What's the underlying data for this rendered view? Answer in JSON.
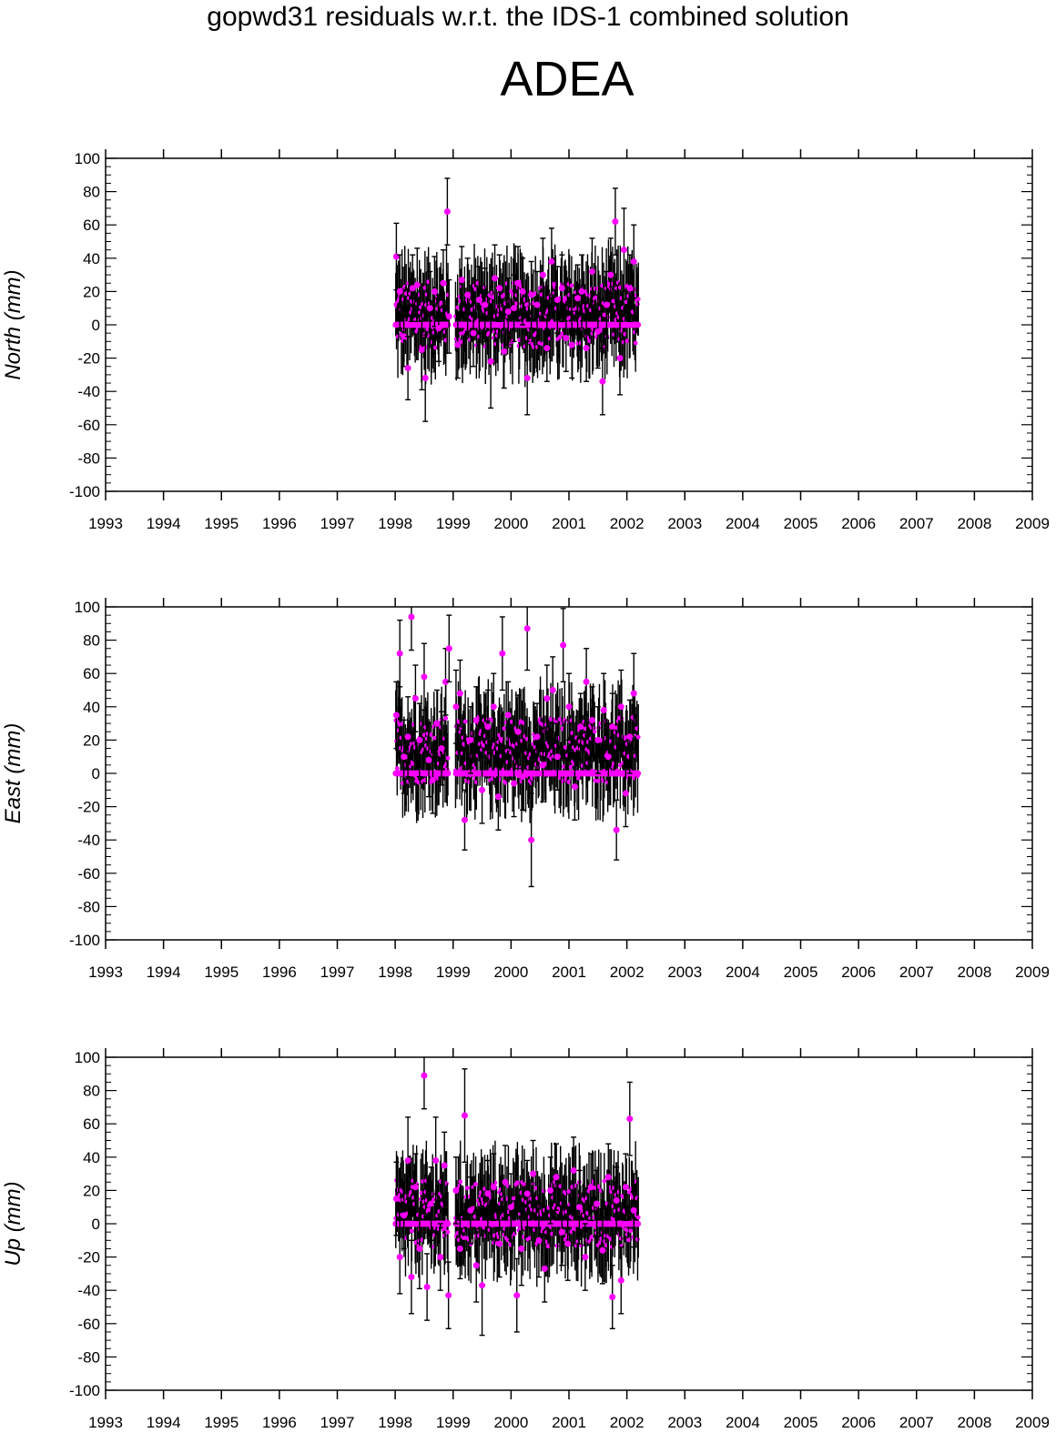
{
  "header": {
    "suptitle": "gopwd31 residuals w.r.t. the IDS-1 combined solution",
    "station": "ADEA"
  },
  "colors": {
    "marker": "#ff00ff",
    "error_bar": "#000000",
    "axes": "#000000"
  },
  "chart_data": [
    {
      "type": "scatter",
      "panel": "north",
      "ylabel": "North (mm)",
      "xlim": [
        1993,
        2009
      ],
      "ylim": [
        -100,
        100
      ],
      "x_ticks": [
        "1993",
        "1994",
        "1995",
        "1996",
        "1997",
        "1998",
        "1999",
        "2000",
        "2001",
        "2002",
        "2003",
        "2004",
        "2005",
        "2006",
        "2007",
        "2008",
        "2009"
      ],
      "y_ticks": [
        "100",
        "80",
        "60",
        "40",
        "20",
        "0",
        "-20",
        "-40",
        "-60",
        "-80",
        "-100"
      ],
      "error_bars": true,
      "data_coverage": [
        1998.0,
        2002.2
      ],
      "series": [
        {
          "x": [
            1998.02,
            1998.08,
            1998.15,
            1998.22,
            1998.3,
            1998.38,
            1998.46,
            1998.52,
            1998.6,
            1998.68,
            1998.75,
            1998.83,
            1998.9,
            1998.93,
            1999.08,
            1999.15,
            1999.25,
            1999.35,
            1999.45,
            1999.55,
            1999.65,
            1999.72,
            1999.8,
            1999.88,
            1999.95,
            2000.05,
            2000.12,
            2000.2,
            2000.28,
            2000.35,
            2000.45,
            2000.55,
            2000.62,
            2000.7,
            2000.8,
            2000.88,
            2000.95,
            2001.05,
            2001.15,
            2001.22,
            2001.3,
            2001.4,
            2001.5,
            2001.58,
            2001.65,
            2001.72,
            2001.8,
            2001.88,
            2001.95,
            2002.05,
            2002.12
          ],
          "y": [
            41,
            20,
            -7,
            -26,
            22,
            24,
            -15,
            -32,
            10,
            20,
            -2,
            25,
            68,
            5,
            -12,
            27,
            18,
            -5,
            15,
            12,
            -22,
            28,
            22,
            -16,
            8,
            10,
            25,
            20,
            -32,
            18,
            12,
            30,
            -14,
            38,
            15,
            22,
            -8,
            -12,
            16,
            20,
            -14,
            32,
            -4,
            -34,
            12,
            30,
            62,
            -20,
            45,
            22,
            38
          ],
          "err": [
            20,
            22,
            18,
            19,
            20,
            22,
            24,
            26,
            22,
            21,
            20,
            20,
            20,
            22,
            20,
            20,
            22,
            20,
            20,
            22,
            28,
            20,
            20,
            22,
            20,
            20,
            22,
            20,
            22,
            20,
            20,
            22,
            20,
            20,
            20,
            20,
            20,
            20,
            20,
            22,
            20,
            20,
            22,
            20,
            20,
            22,
            20,
            22,
            25,
            20,
            22
          ]
        }
      ]
    },
    {
      "type": "scatter",
      "panel": "east",
      "ylabel": "East (mm)",
      "xlim": [
        1993,
        2009
      ],
      "ylim": [
        -100,
        100
      ],
      "x_ticks": [
        "1993",
        "1994",
        "1995",
        "1996",
        "1997",
        "1998",
        "1999",
        "2000",
        "2001",
        "2002",
        "2003",
        "2004",
        "2005",
        "2006",
        "2007",
        "2008",
        "2009"
      ],
      "y_ticks": [
        "100",
        "80",
        "60",
        "40",
        "20",
        "0",
        "-20",
        "-40",
        "-60",
        "-80",
        "-100"
      ],
      "error_bars": true,
      "data_coverage": [
        1998.0,
        2002.2
      ],
      "series": [
        {
          "x": [
            1998.02,
            1998.08,
            1998.15,
            1998.22,
            1998.28,
            1998.35,
            1998.42,
            1998.5,
            1998.58,
            1998.65,
            1998.72,
            1998.8,
            1998.87,
            1998.93,
            1999.05,
            1999.12,
            1999.2,
            1999.3,
            1999.4,
            1999.5,
            1999.6,
            1999.7,
            1999.78,
            1999.85,
            1999.95,
            2000.05,
            2000.12,
            2000.2,
            2000.28,
            2000.35,
            2000.45,
            2000.55,
            2000.62,
            2000.72,
            2000.8,
            2000.9,
            2001.0,
            2001.1,
            2001.2,
            2001.3,
            2001.4,
            2001.5,
            2001.6,
            2001.68,
            2001.75,
            2001.82,
            2001.9,
            2001.98,
            2002.05,
            2002.12
          ],
          "y": [
            35,
            72,
            10,
            22,
            94,
            45,
            20,
            58,
            8,
            -4,
            30,
            15,
            55,
            75,
            40,
            48,
            -28,
            20,
            32,
            -10,
            28,
            40,
            -14,
            72,
            35,
            -6,
            25,
            -2,
            87,
            -40,
            22,
            5,
            45,
            50,
            10,
            77,
            40,
            -8,
            28,
            55,
            32,
            20,
            38,
            10,
            28,
            -34,
            40,
            -12,
            22,
            48
          ],
          "err": [
            20,
            20,
            22,
            24,
            20,
            20,
            22,
            20,
            22,
            20,
            20,
            22,
            20,
            20,
            22,
            20,
            18,
            20,
            20,
            20,
            22,
            20,
            20,
            22,
            20,
            20,
            22,
            20,
            25,
            28,
            20,
            22,
            20,
            20,
            20,
            22,
            20,
            20,
            20,
            20,
            20,
            20,
            22,
            20,
            20,
            18,
            22,
            20,
            22,
            24
          ]
        }
      ]
    },
    {
      "type": "scatter",
      "panel": "up",
      "ylabel": "Up (mm)",
      "xlim": [
        1993,
        2009
      ],
      "ylim": [
        -100,
        100
      ],
      "x_ticks": [
        "1993",
        "1994",
        "1995",
        "1996",
        "1997",
        "1998",
        "1999",
        "2000",
        "2001",
        "2002",
        "2003",
        "2004",
        "2005",
        "2006",
        "2007",
        "2008",
        "2009"
      ],
      "y_ticks": [
        "100",
        "80",
        "60",
        "40",
        "20",
        "0",
        "-20",
        "-40",
        "-60",
        "-80",
        "-100"
      ],
      "error_bars": true,
      "data_coverage": [
        1998.0,
        2002.2
      ],
      "series": [
        {
          "x": [
            1998.02,
            1998.08,
            1998.15,
            1998.22,
            1998.28,
            1998.35,
            1998.42,
            1998.5,
            1998.55,
            1998.62,
            1998.7,
            1998.78,
            1998.85,
            1998.92,
            1999.05,
            1999.12,
            1999.2,
            1999.3,
            1999.4,
            1999.5,
            1999.6,
            1999.7,
            1999.8,
            1999.9,
            2000.0,
            2000.1,
            2000.18,
            2000.28,
            2000.38,
            2000.48,
            2000.58,
            2000.68,
            2000.78,
            2000.88,
            2000.98,
            2001.08,
            2001.18,
            2001.28,
            2001.38,
            2001.48,
            2001.58,
            2001.68,
            2001.75,
            2001.82,
            2001.9,
            2001.98,
            2002.05,
            2002.12
          ],
          "y": [
            15,
            -20,
            5,
            38,
            -32,
            22,
            -15,
            89,
            -38,
            12,
            38,
            -20,
            35,
            -43,
            20,
            -15,
            65,
            8,
            -25,
            -37,
            18,
            22,
            -12,
            25,
            10,
            -43,
            -15,
            18,
            30,
            -10,
            -27,
            20,
            28,
            -5,
            -12,
            32,
            10,
            -20,
            22,
            12,
            -16,
            28,
            -44,
            14,
            -34,
            22,
            63,
            8
          ],
          "err": [
            22,
            22,
            20,
            26,
            22,
            20,
            24,
            20,
            20,
            22,
            26,
            20,
            20,
            20,
            20,
            18,
            28,
            20,
            22,
            30,
            20,
            20,
            20,
            22,
            20,
            22,
            22,
            20,
            20,
            22,
            20,
            20,
            20,
            20,
            22,
            20,
            22,
            20,
            20,
            20,
            20,
            20,
            19,
            20,
            20,
            20,
            22,
            22
          ]
        }
      ]
    }
  ]
}
